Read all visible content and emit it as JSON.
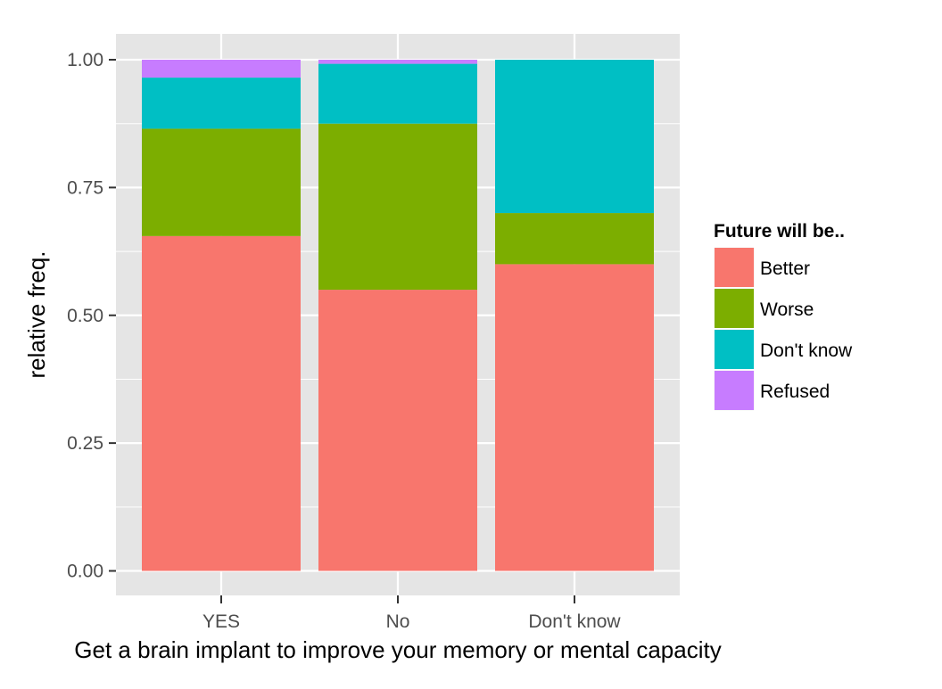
{
  "chart_data": {
    "type": "bar",
    "stacked": true,
    "categories": [
      "YES",
      "No",
      "Don't know"
    ],
    "xlabel": "Get a brain implant to improve your memory or mental capacity",
    "ylabel": "relative freq.",
    "ylim": [
      0,
      1
    ],
    "yticks": [
      "0.00",
      "0.25",
      "0.50",
      "0.75",
      "1.00"
    ],
    "grid": true,
    "legend": {
      "title": "Future will be..",
      "position": "right"
    },
    "series": [
      {
        "name": "Better",
        "color": "#f8766d",
        "values": [
          0.655,
          0.55,
          0.6
        ]
      },
      {
        "name": "Worse",
        "color": "#7cae00",
        "values": [
          0.21,
          0.325,
          0.1
        ]
      },
      {
        "name": "Don't know",
        "color": "#00bfc4",
        "values": [
          0.1,
          0.117,
          0.3
        ]
      },
      {
        "name": "Refused",
        "color": "#c77cff",
        "values": [
          0.035,
          0.008,
          0.0
        ]
      }
    ],
    "colors": {
      "panel_background": "#e5e5e5",
      "grid_line": "#ffffff",
      "tick_label": "#4d4d4d"
    }
  }
}
